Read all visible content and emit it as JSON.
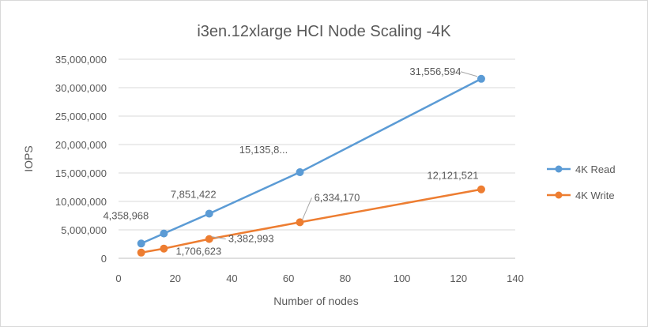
{
  "chart_data": {
    "type": "line",
    "title": "i3en.12xlarge HCI Node Scaling -4K",
    "xlabel": "Number of nodes",
    "ylabel": "IOPS",
    "xlim": [
      0,
      140
    ],
    "xticks": [
      0,
      20,
      40,
      60,
      80,
      100,
      120,
      140
    ],
    "xtick_labels": [
      "0",
      "20",
      "40",
      "60",
      "80",
      "100",
      "120",
      "140"
    ],
    "ylim": [
      0,
      35000000
    ],
    "yticks": [
      0,
      5000000,
      10000000,
      15000000,
      20000000,
      25000000,
      30000000,
      35000000
    ],
    "ytick_labels": [
      "0",
      "5,000,000",
      "10,000,000",
      "15,000,000",
      "20,000,000",
      "25,000,000",
      "30,000,000",
      "35,000,000"
    ],
    "grid": true,
    "legend_position": "right",
    "series": [
      {
        "name": "4K Read",
        "color": "#5b9bd5",
        "x": [
          8,
          16,
          32,
          64,
          128
        ],
        "values": [
          2600000,
          4358968,
          7851422,
          15135800,
          31556594
        ],
        "labels": [
          {
            "index": 1,
            "text": "4,358,968"
          },
          {
            "index": 2,
            "text": "7,851,422"
          },
          {
            "index": 3,
            "text": "15,135,8..."
          },
          {
            "index": 4,
            "text": "31,556,594"
          }
        ]
      },
      {
        "name": "4K Write",
        "color": "#ed7d31",
        "x": [
          8,
          16,
          32,
          64,
          128
        ],
        "values": [
          1000000,
          1706623,
          3382993,
          6334170,
          12121521
        ],
        "labels": [
          {
            "index": 1,
            "text": "1,706,623"
          },
          {
            "index": 2,
            "text": "3,382,993"
          },
          {
            "index": 3,
            "text": "6,334,170"
          },
          {
            "index": 4,
            "text": "12,121,521"
          }
        ]
      }
    ]
  }
}
